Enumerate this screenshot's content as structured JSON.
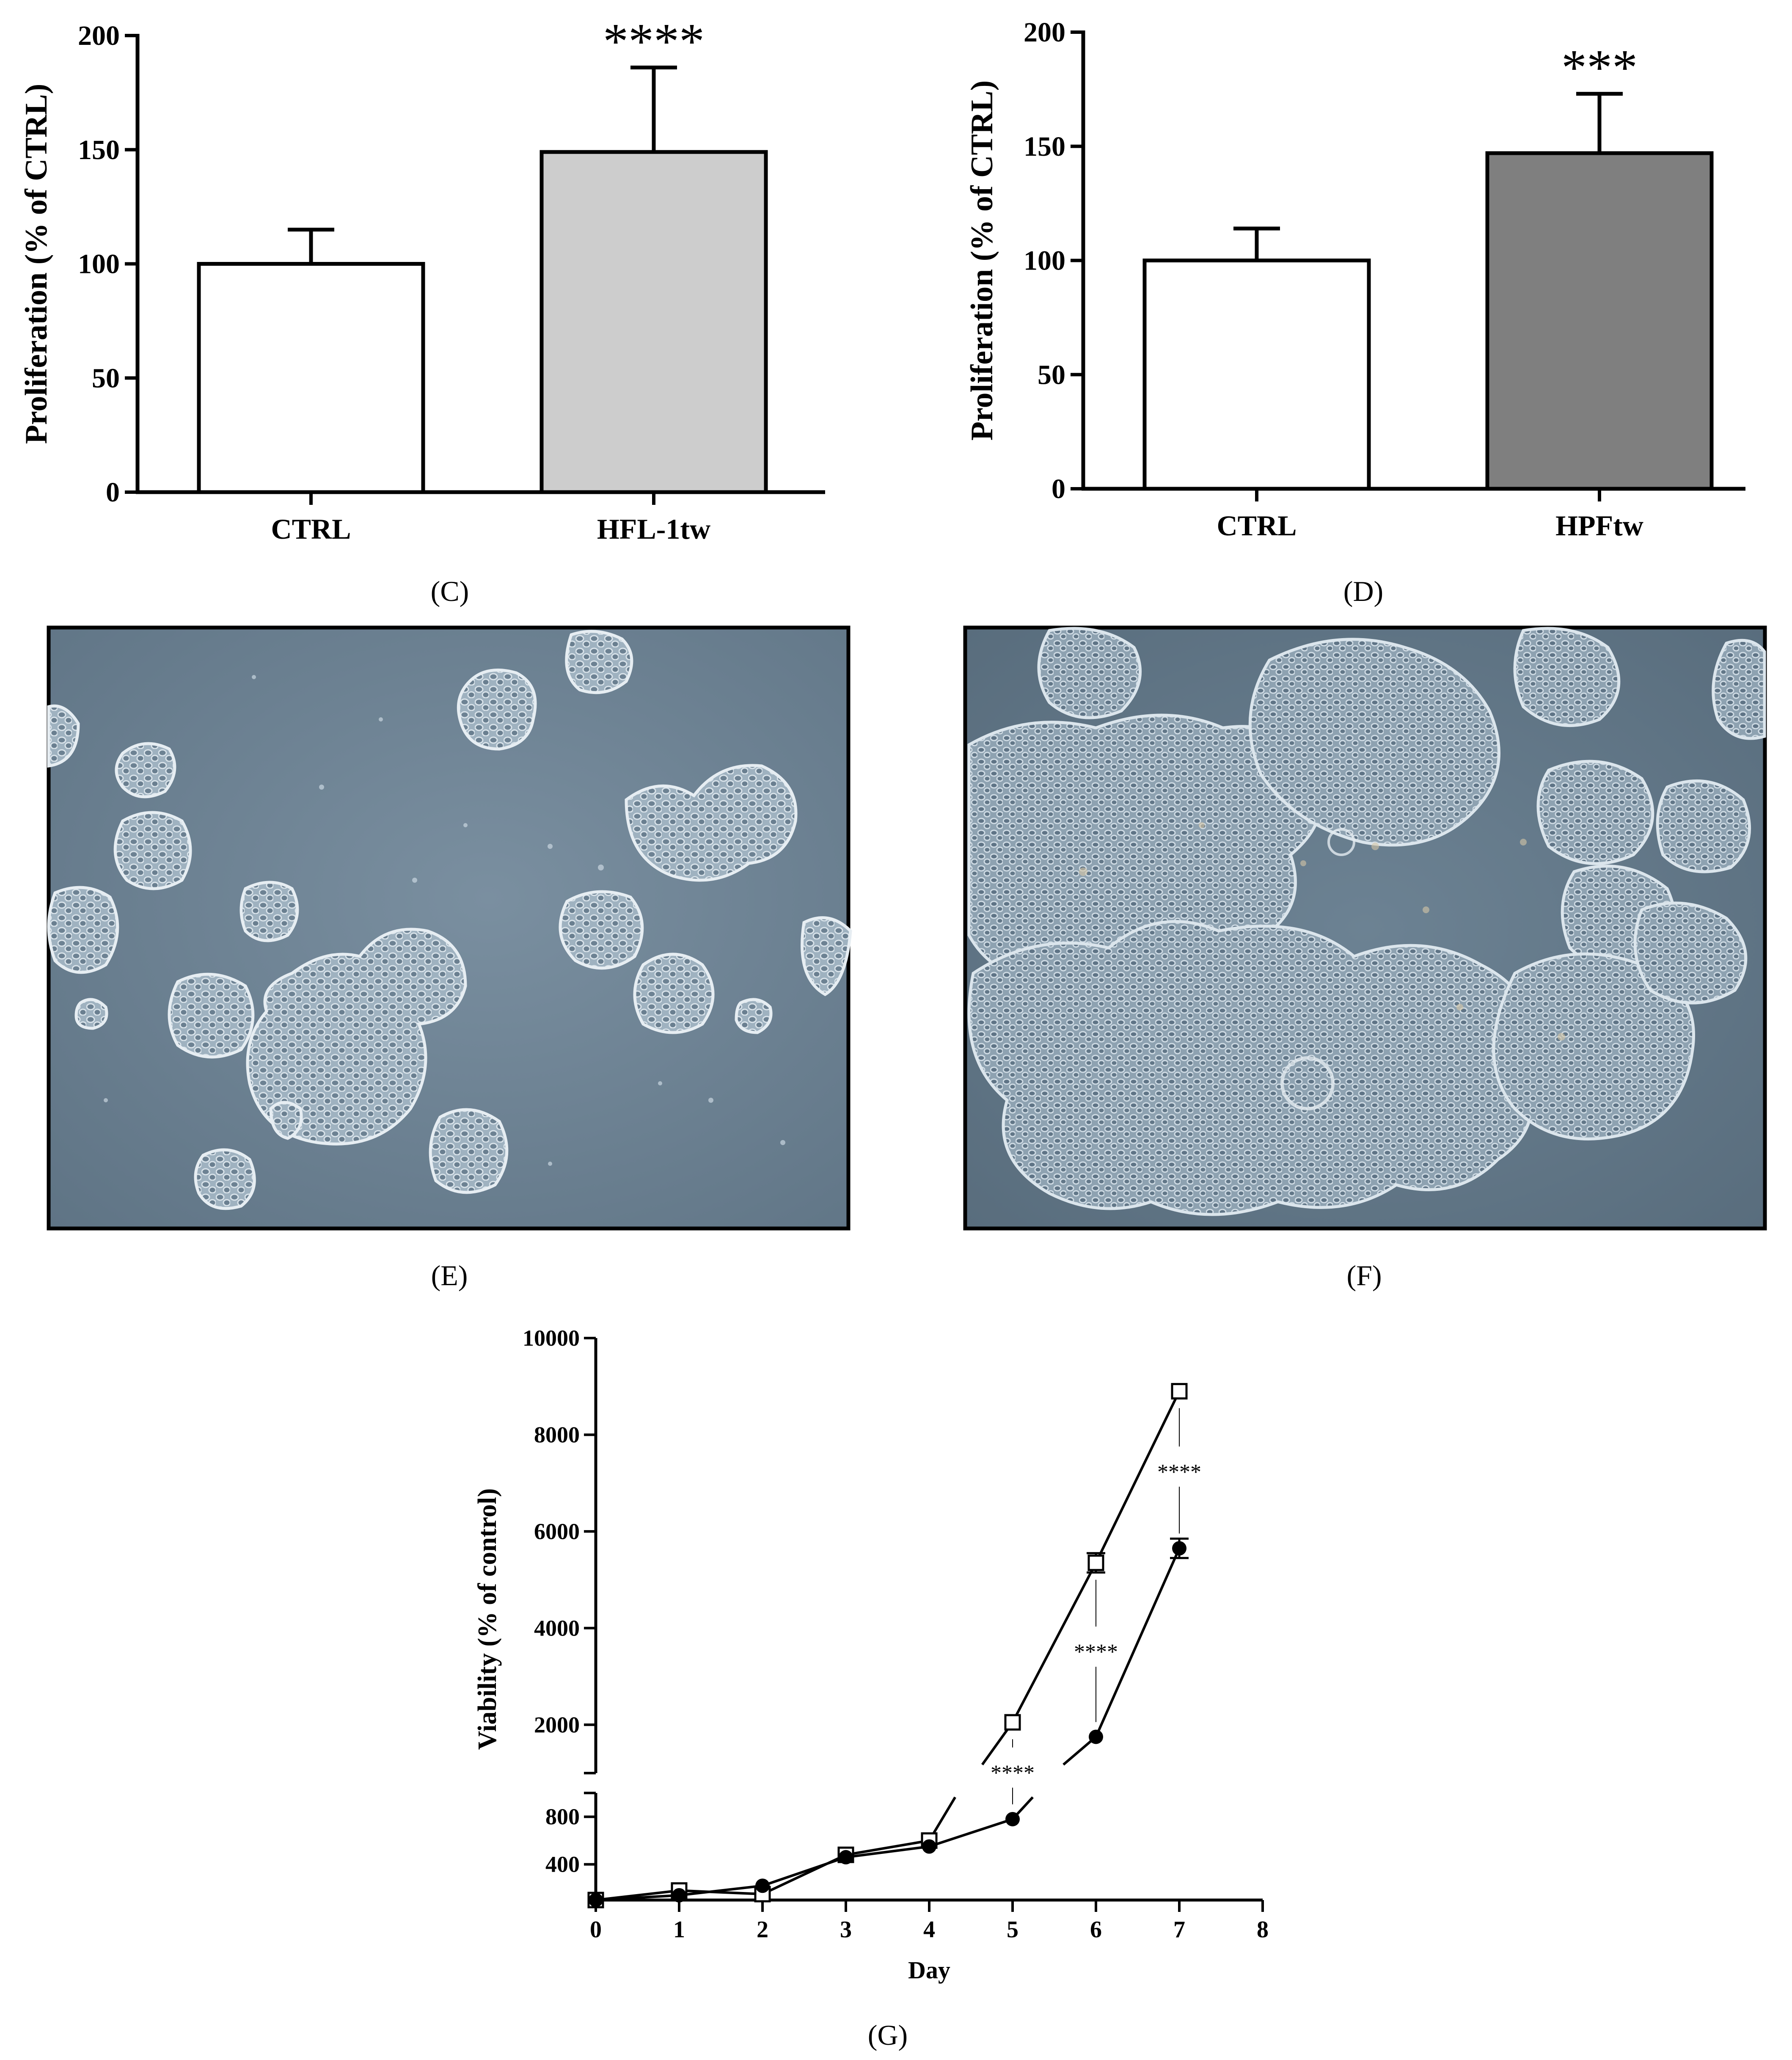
{
  "panel_labels": {
    "C": "(C)",
    "D": "(D)",
    "E": "(E)",
    "F": "(F)",
    "G": "(G)"
  },
  "colors": {
    "ctrl_bar": "#ffffff",
    "hfl_bar": "#cdcdcd",
    "hpf_bar": "#7f7f7f",
    "micro_bg": "#6f8597",
    "micro_colony": "#a8b9c6"
  },
  "chart_data": [
    {
      "id": "C",
      "type": "bar",
      "ylabel": "Proliferation (% of CTRL)",
      "xlabel": "",
      "ylim": [
        0,
        200
      ],
      "yticks": [
        0,
        50,
        100,
        150,
        200
      ],
      "categories": [
        "CTRL",
        "HFL-1tw"
      ],
      "values": [
        100,
        149
      ],
      "errors": [
        15,
        37
      ],
      "significance": [
        "",
        "****"
      ],
      "bar_colors": [
        "#ffffff",
        "#cdcdcd"
      ],
      "grid": false
    },
    {
      "id": "D",
      "type": "bar",
      "ylabel": "Proliferation (% of CTRL)",
      "xlabel": "",
      "ylim": [
        0,
        200
      ],
      "yticks": [
        0,
        50,
        100,
        150,
        200
      ],
      "categories": [
        "CTRL",
        "HPFtw"
      ],
      "values": [
        100,
        147
      ],
      "errors": [
        14,
        26
      ],
      "significance": [
        "",
        "***"
      ],
      "bar_colors": [
        "#ffffff",
        "#7f7f7f"
      ],
      "grid": false
    },
    {
      "id": "G",
      "type": "line",
      "ylabel": "Viability (% of control)",
      "xlabel": "Day",
      "xlim": [
        0,
        8
      ],
      "xticks": [
        0,
        1,
        2,
        3,
        4,
        5,
        6,
        7,
        8
      ],
      "y_lower_ticks": [
        400,
        800
      ],
      "y_upper_ticks": [
        2000,
        4000,
        6000,
        8000,
        10000
      ],
      "y_lower_range": [
        100,
        1000
      ],
      "y_upper_range": [
        1000,
        10000
      ],
      "series": [
        {
          "marker": "open-square",
          "x": [
            0,
            1,
            2,
            3,
            4,
            5,
            6,
            7
          ],
          "y": [
            100,
            180,
            150,
            480,
            600,
            2050,
            5350,
            8900
          ],
          "errors": [
            0,
            0,
            0,
            0,
            0,
            0,
            200,
            0
          ]
        },
        {
          "marker": "filled-circle",
          "x": [
            0,
            1,
            2,
            3,
            4,
            5,
            6,
            7
          ],
          "y": [
            100,
            140,
            220,
            460,
            550,
            780,
            1750,
            5650
          ],
          "errors": [
            0,
            0,
            0,
            0,
            0,
            0,
            0,
            200
          ]
        }
      ],
      "significance": [
        {
          "x": 5,
          "label": "****"
        },
        {
          "x": 6,
          "label": "****"
        },
        {
          "x": 7,
          "label": "****"
        }
      ],
      "grid": false
    }
  ]
}
